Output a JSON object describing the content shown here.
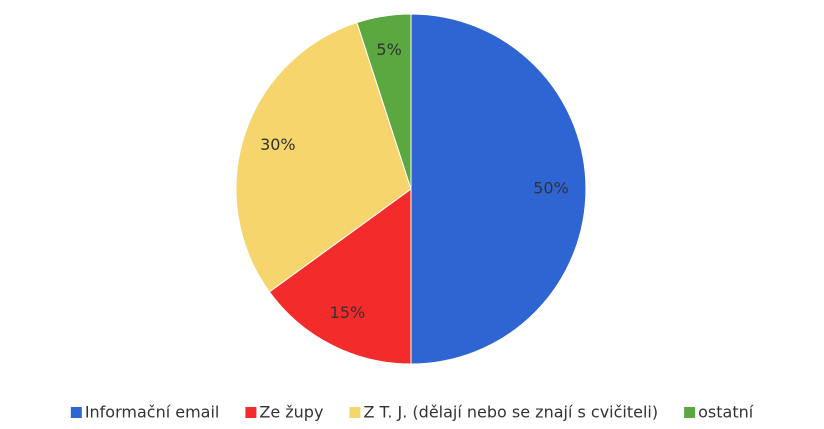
{
  "chart_data": {
    "type": "pie",
    "categories": [
      "Informační email",
      "Ze župy",
      "Z T. J. (dělají nebo se znají s cvičiteli)",
      "ostatní"
    ],
    "values": [
      50,
      15,
      30,
      5
    ],
    "value_labels": [
      "50%",
      "15%",
      "30%",
      "5%"
    ],
    "colors": [
      "#2f65d3",
      "#f42b2b",
      "#f6d56c",
      "#5aa83f"
    ],
    "legend": "bottom"
  }
}
